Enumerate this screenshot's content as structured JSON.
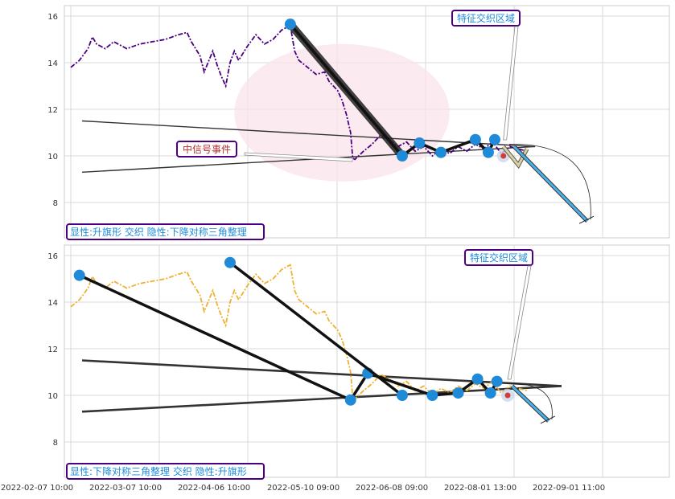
{
  "chart_data": {
    "type": "line",
    "x_ticks": [
      "2022-02-07 10:00",
      "2022-03-07 10:00",
      "2022-04-06 10:00",
      "2022-05-10 09:00",
      "2022-06-08 09:00",
      "2022-08-01 13:00",
      "2022-09-01 11:00"
    ],
    "y_ticks": [
      "8",
      "10",
      "12",
      "14",
      "16"
    ],
    "ylim": [
      6.5,
      16.5
    ],
    "grid": true,
    "panels": [
      {
        "id": "top",
        "line_color": "#4b0082",
        "series": [
          [
            0,
            13.8
          ],
          [
            2,
            14.1
          ],
          [
            4,
            14.6
          ],
          [
            5,
            15.1
          ],
          [
            6,
            14.8
          ],
          [
            8,
            14.6
          ],
          [
            10,
            14.9
          ],
          [
            13,
            14.6
          ],
          [
            16,
            14.8
          ],
          [
            19,
            14.9
          ],
          [
            22,
            15.0
          ],
          [
            25,
            15.2
          ],
          [
            27,
            15.3
          ],
          [
            28,
            14.9
          ],
          [
            30,
            14.3
          ],
          [
            31,
            13.6
          ],
          [
            33,
            14.5
          ],
          [
            34,
            13.9
          ],
          [
            35,
            13.4
          ],
          [
            36,
            13.0
          ],
          [
            37,
            14.0
          ],
          [
            38,
            14.5
          ],
          [
            39,
            14.1
          ],
          [
            41,
            14.7
          ],
          [
            43,
            15.2
          ],
          [
            45,
            14.8
          ],
          [
            47,
            15.0
          ],
          [
            49,
            15.4
          ],
          [
            51,
            15.6
          ],
          [
            52,
            14.5
          ],
          [
            53,
            14.1
          ],
          [
            55,
            13.8
          ],
          [
            57,
            13.5
          ],
          [
            59,
            13.6
          ],
          [
            60,
            13.2
          ],
          [
            62,
            12.8
          ],
          [
            63,
            12.4
          ],
          [
            64,
            11.8
          ],
          [
            65,
            11.0
          ],
          [
            65.5,
            9.9
          ],
          [
            66,
            9.85
          ],
          [
            68,
            10.2
          ],
          [
            70,
            10.5
          ],
          [
            72,
            10.9
          ],
          [
            74,
            10.7
          ],
          [
            76,
            10.4
          ],
          [
            78,
            10.6
          ],
          [
            80,
            10.2
          ],
          [
            82,
            10.4
          ],
          [
            84,
            10.0
          ],
          [
            86,
            10.3
          ],
          [
            88,
            10.1
          ],
          [
            90,
            10.4
          ],
          [
            92,
            10.2
          ],
          [
            94,
            10.5
          ],
          [
            96,
            10.3
          ],
          [
            98,
            10.6
          ],
          [
            100,
            10.1
          ],
          [
            102,
            10.4
          ],
          [
            104,
            10.3
          ],
          [
            106,
            10.2
          ]
        ],
        "pivots": [
          [
            51,
            15.65
          ],
          [
            77,
            10.0
          ],
          [
            81,
            10.55
          ],
          [
            86,
            10.15
          ],
          [
            94,
            10.7
          ],
          [
            97,
            10.15
          ],
          [
            98.5,
            10.7
          ]
        ],
        "triangle": {
          "upper": [
            [
              0,
              11.5
            ],
            [
              106,
              10.4
            ]
          ],
          "lower": [
            [
              0,
              9.3
            ],
            [
              106,
              10.4
            ]
          ]
        },
        "ellipse": {
          "cx": 63,
          "cy": 11.85,
          "rx": 25,
          "ry": 2.95
        },
        "last_point": [
          100.5,
          10.0
        ],
        "forecast": [
          [
            100.5,
            10.4
          ],
          [
            104,
            9.6
          ],
          [
            106,
            10.3
          ]
        ],
        "forecast_down": [
          [
            103,
            10.4
          ],
          [
            120,
            7.2
          ]
        ],
        "badge": "特征交织区域",
        "event_label": "中信号事件",
        "pattern_label": "显性:升旗形 交织 隐性:下降对称三角整理"
      },
      {
        "id": "bottom",
        "line_color": "#f0b030",
        "series": [
          [
            0,
            13.8
          ],
          [
            2,
            14.1
          ],
          [
            4,
            14.6
          ],
          [
            5,
            15.1
          ],
          [
            6,
            14.8
          ],
          [
            8,
            14.6
          ],
          [
            10,
            14.9
          ],
          [
            13,
            14.6
          ],
          [
            16,
            14.8
          ],
          [
            19,
            14.9
          ],
          [
            22,
            15.0
          ],
          [
            25,
            15.2
          ],
          [
            27,
            15.3
          ],
          [
            28,
            14.9
          ],
          [
            30,
            14.3
          ],
          [
            31,
            13.6
          ],
          [
            33,
            14.5
          ],
          [
            34,
            13.9
          ],
          [
            35,
            13.4
          ],
          [
            36,
            13.0
          ],
          [
            37,
            14.0
          ],
          [
            38,
            14.5
          ],
          [
            39,
            14.1
          ],
          [
            41,
            14.7
          ],
          [
            43,
            15.2
          ],
          [
            45,
            14.8
          ],
          [
            47,
            15.0
          ],
          [
            49,
            15.4
          ],
          [
            51,
            15.6
          ],
          [
            52,
            14.5
          ],
          [
            53,
            14.1
          ],
          [
            55,
            13.8
          ],
          [
            57,
            13.5
          ],
          [
            59,
            13.6
          ],
          [
            60,
            13.2
          ],
          [
            62,
            12.8
          ],
          [
            63,
            12.4
          ],
          [
            64,
            11.8
          ],
          [
            65,
            11.0
          ],
          [
            65.5,
            9.9
          ],
          [
            66,
            9.85
          ],
          [
            68,
            10.2
          ],
          [
            70,
            10.5
          ],
          [
            72,
            10.9
          ],
          [
            74,
            10.7
          ],
          [
            76,
            10.4
          ],
          [
            78,
            10.6
          ],
          [
            80,
            10.2
          ],
          [
            82,
            10.4
          ],
          [
            84,
            10.0
          ],
          [
            86,
            10.3
          ],
          [
            88,
            10.1
          ],
          [
            90,
            10.4
          ],
          [
            92,
            10.2
          ],
          [
            94,
            10.5
          ],
          [
            96,
            10.3
          ],
          [
            98,
            10.6
          ],
          [
            100,
            10.1
          ],
          [
            102,
            10.4
          ],
          [
            104,
            10.3
          ],
          [
            106,
            10.2
          ]
        ],
        "pivots_a": [
          [
            2,
            15.15
          ],
          [
            65,
            9.8
          ],
          [
            69,
            10.95
          ],
          [
            84,
            10.0
          ],
          [
            90,
            10.1
          ],
          [
            94.5,
            10.7
          ],
          [
            97.5,
            10.1
          ],
          [
            99,
            10.6
          ]
        ],
        "pivots_b": [
          [
            37,
            15.7
          ],
          [
            77,
            10.0
          ]
        ],
        "triangle": {
          "upper": [
            [
              0,
              11.5
            ],
            [
              114,
              10.4
            ]
          ],
          "lower": [
            [
              0,
              9.3
            ],
            [
              114,
              10.4
            ]
          ]
        },
        "last_point": [
          101.5,
          10.0
        ],
        "forecast_down": [
          [
            102.5,
            10.4
          ],
          [
            111,
            8.9
          ]
        ],
        "badge": "特征交织区域",
        "pattern_label": "显性:下降对称三角整理 交织 隐性:升旗形"
      }
    ]
  }
}
